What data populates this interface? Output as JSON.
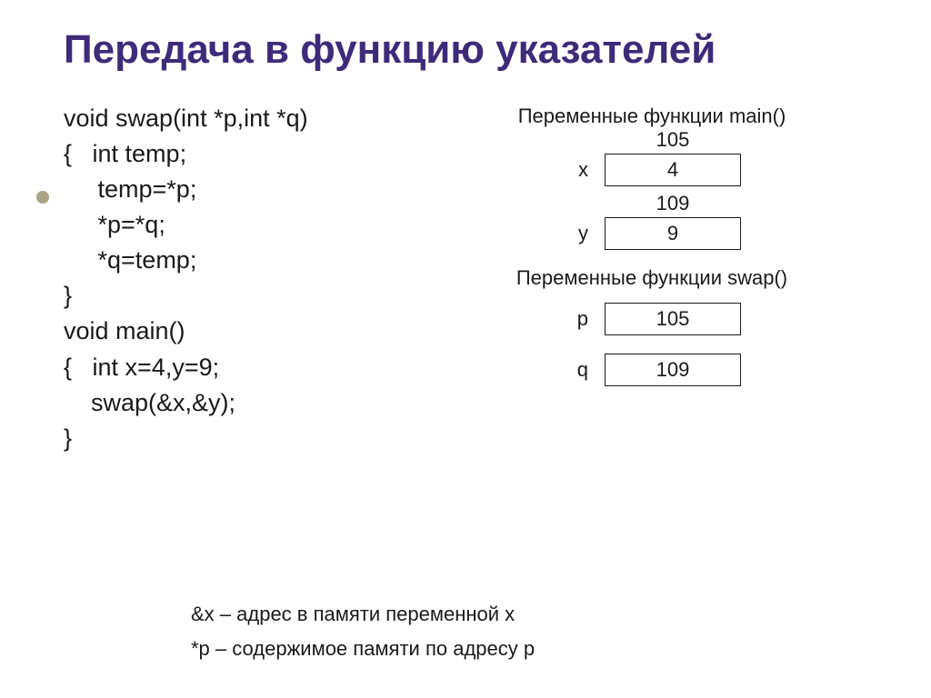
{
  "title": "Передача в функцию указателей",
  "title_color": "#3f2a7a",
  "bullet_color": "#a8a482",
  "code": {
    "l1": "void swap(int *p,int *q)",
    "l2": "{   int temp;",
    "l3": "     temp=*p;",
    "l4": "     *p=*q;",
    "l5": "     *q=temp;",
    "l6": "}",
    "l7": "void main()",
    "l8": "{   int x=4,y=9;",
    "l9": "    swap(&x,&y);",
    "l10": "}"
  },
  "diagram": {
    "main_caption": "Переменные функции main()",
    "swap_caption": "Переменные функции swap()",
    "x": {
      "name": "x",
      "addr": "105",
      "value": "4"
    },
    "y": {
      "name": "y",
      "addr": "109",
      "value": "9"
    },
    "p": {
      "name": "p",
      "value": "105"
    },
    "q": {
      "name": "q",
      "value": "109"
    }
  },
  "footnotes": {
    "f1": "&x – адрес в памяти переменной x",
    "f2": "*p – содержимое памяти по адресу p"
  },
  "colors": {
    "text": "#1a1a1a",
    "box_border": "#1a1a1a",
    "background": "#ffffff"
  }
}
